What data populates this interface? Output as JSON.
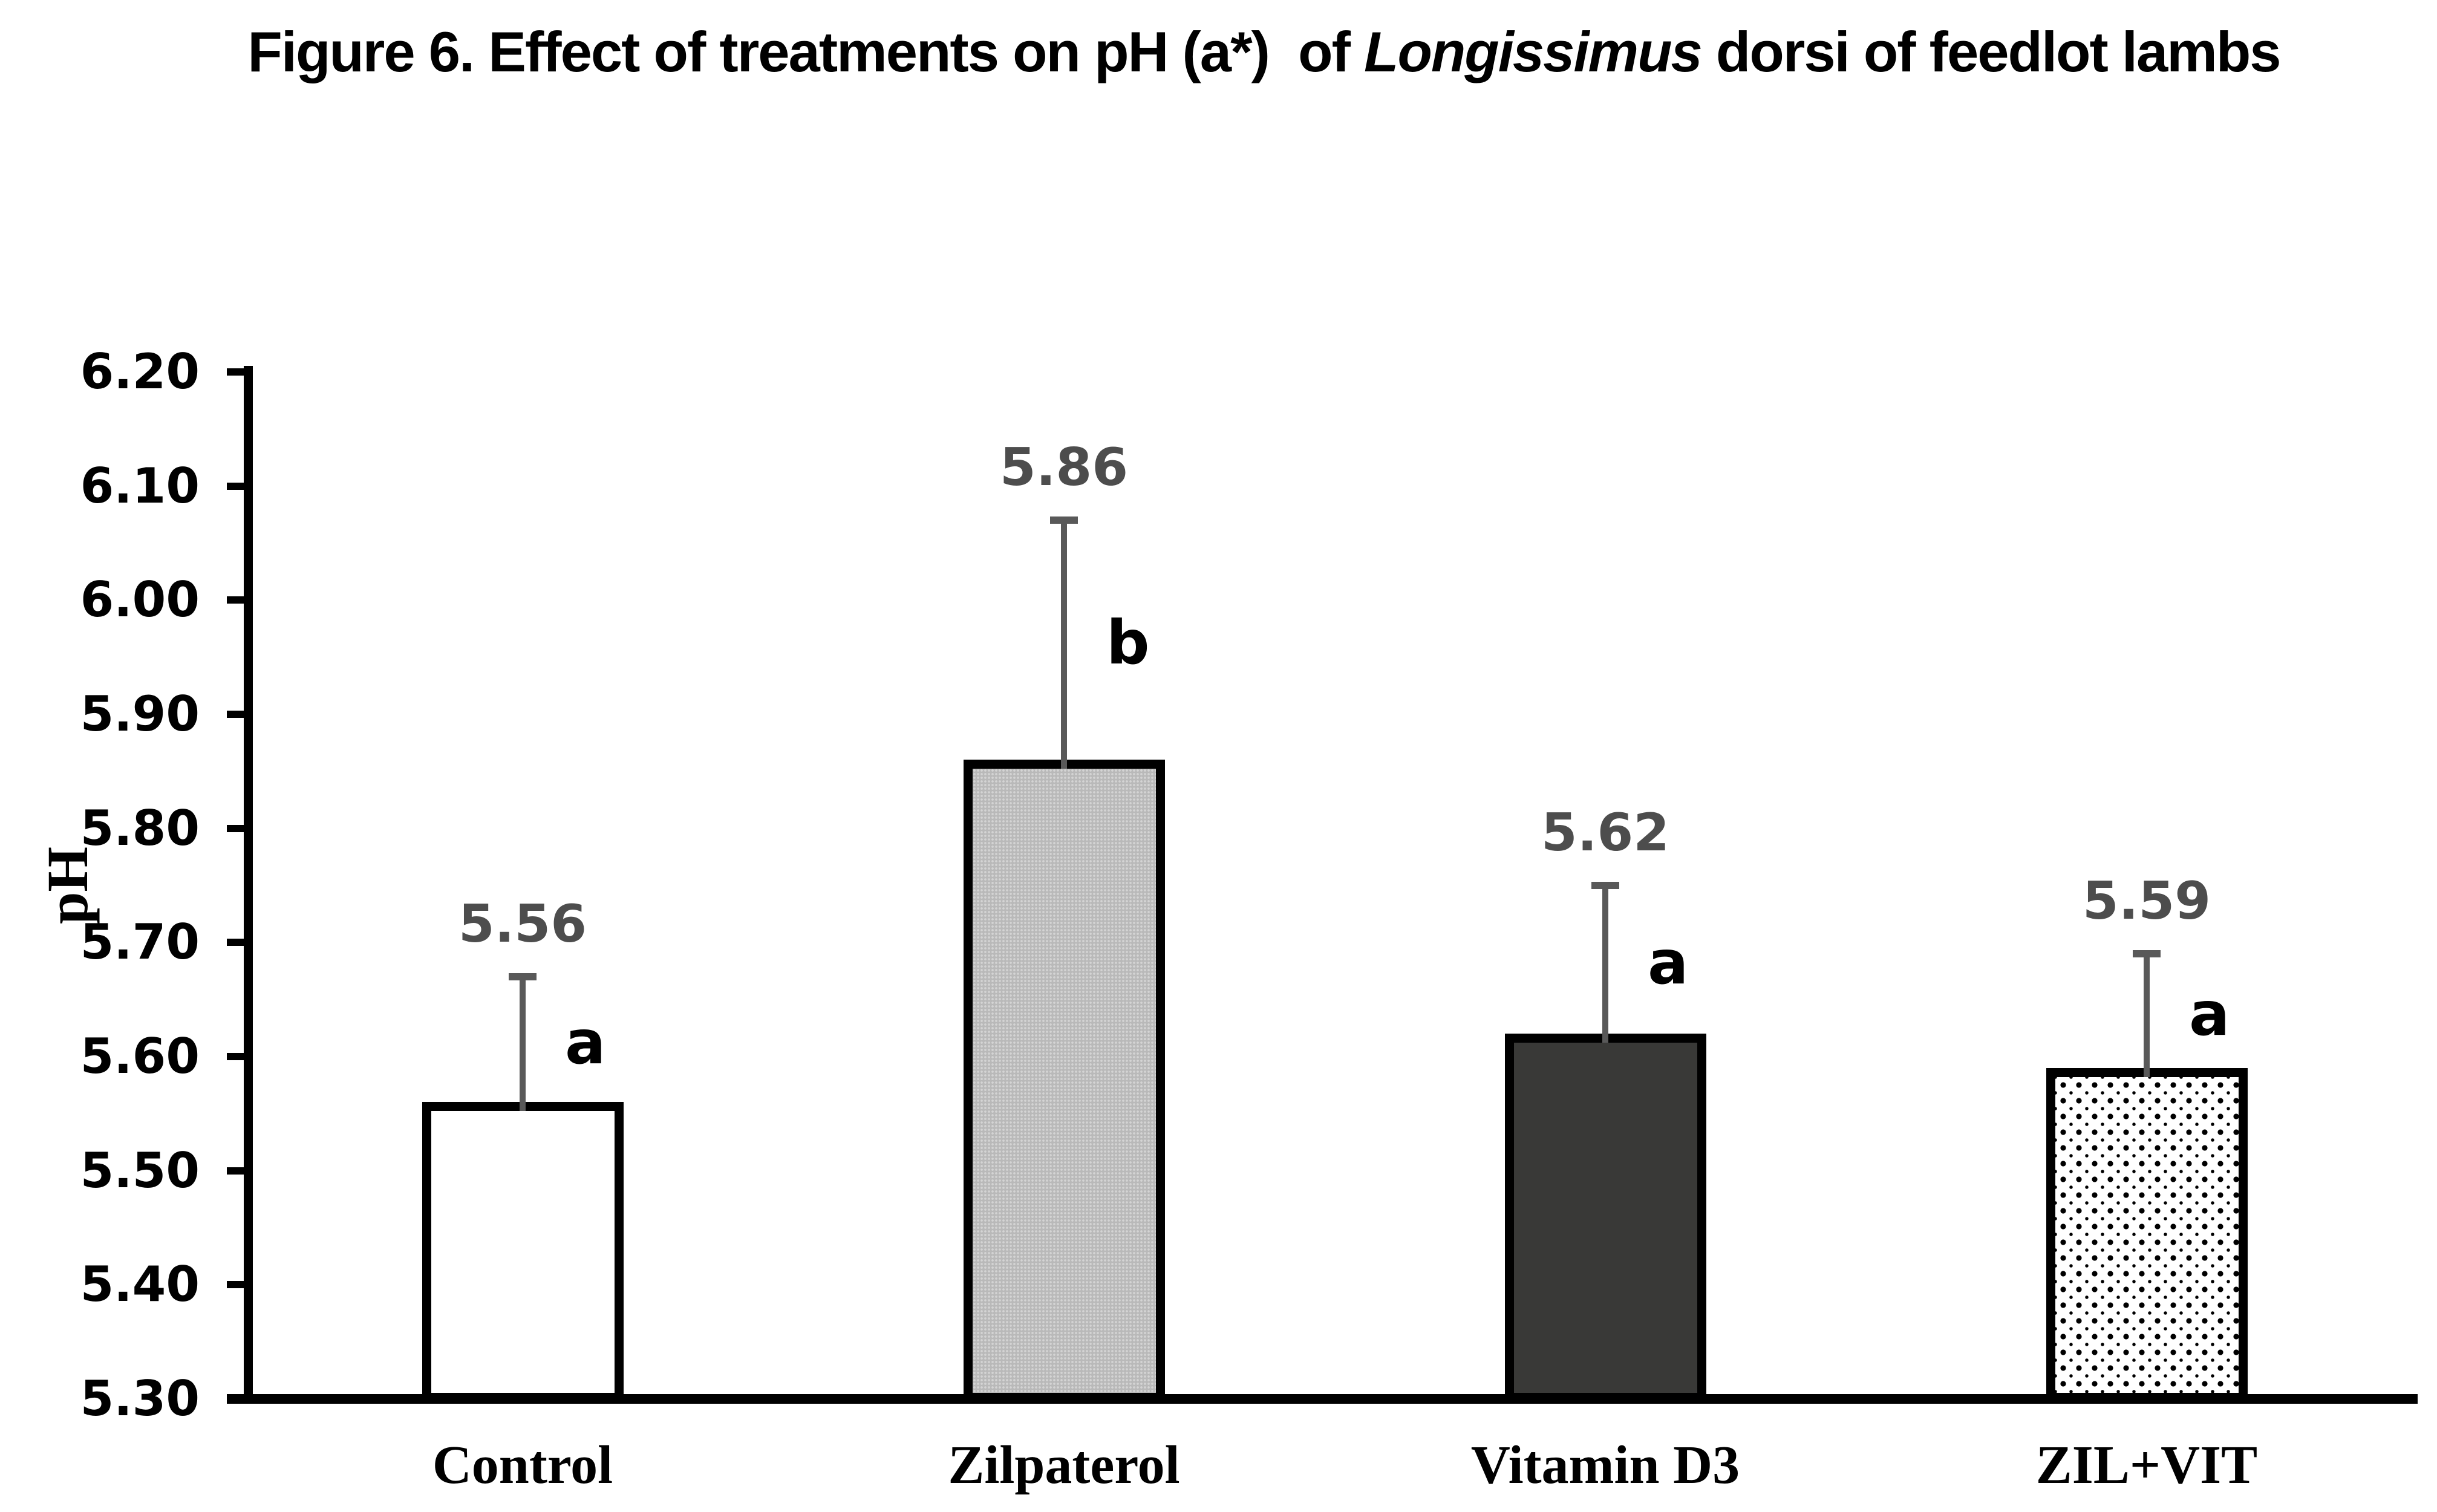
{
  "title": {
    "prefix": "Figure 6. Effect of treatments on pH (a*)  of ",
    "italic_word": "Longissimus",
    "suffix": " dorsi of feedlot lambs"
  },
  "chart_data": {
    "type": "bar",
    "title": "Figure 6. Effect of treatments on pH (a*) of Longissimus dorsi of feedlot lambs",
    "ylabel": "pH",
    "xlabel": "",
    "ylim": [
      5.3,
      6.2
    ],
    "ytick_step": 0.1,
    "ytick_labels": [
      "6.20",
      "6.10",
      "6.00",
      "5.90",
      "5.80",
      "5.70",
      "5.60",
      "5.50",
      "5.40",
      "5.30"
    ],
    "categories": [
      "Control",
      "Zilpaterol",
      "Vitamin D3",
      "ZIL+VIT"
    ],
    "values": [
      5.56,
      5.86,
      5.62,
      5.59
    ],
    "value_labels": [
      "5.56",
      "5.86",
      "5.62",
      "5.59"
    ],
    "significance_letters": [
      "a",
      "b",
      "a",
      "a"
    ],
    "error_bar_tops": [
      5.67,
      6.07,
      5.75,
      5.69
    ],
    "bar_fills": [
      "white",
      "gray-stipple",
      "dark-gray",
      "black-dots"
    ],
    "grid": false,
    "legend": false
  },
  "colors": {
    "text": "#000000",
    "value_label_gray": "#4d4d4d",
    "error_bar_gray": "#595959",
    "bar_dark_fill": "#393937",
    "bar_light_fill": "#b9b9b9",
    "background": "#ffffff"
  }
}
